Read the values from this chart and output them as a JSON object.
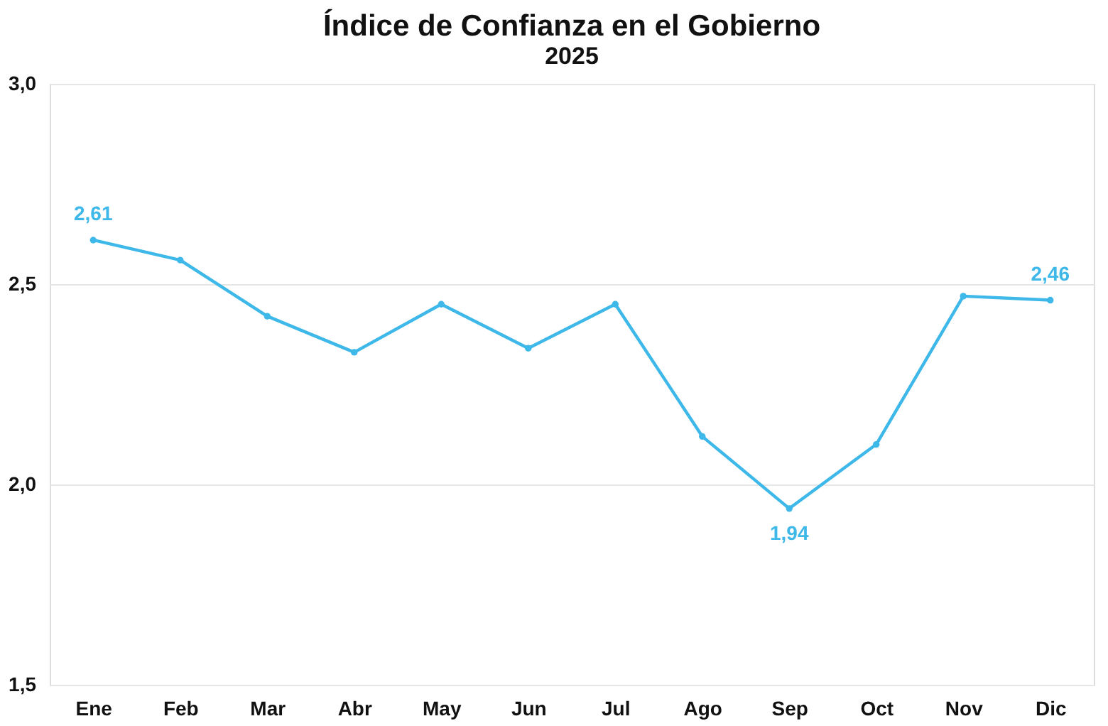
{
  "chart_data": {
    "type": "line",
    "title": "Índice de Confianza en el Gobierno",
    "subtitle": "2025",
    "categories": [
      "Ene",
      "Feb",
      "Mar",
      "Abr",
      "May",
      "Jun",
      "Jul",
      "Ago",
      "Sep",
      "Oct",
      "Nov",
      "Dic"
    ],
    "series": [
      {
        "color": "#3db8e8",
        "values": [
          2.61,
          2.56,
          2.42,
          2.33,
          2.45,
          2.34,
          2.45,
          2.12,
          1.94,
          2.1,
          2.47,
          2.46
        ],
        "value_labels": [
          "2,61",
          null,
          null,
          null,
          null,
          null,
          null,
          null,
          "1,94",
          null,
          null,
          "2,46"
        ]
      }
    ],
    "ylim": [
      1.5,
      3.0
    ],
    "yticks": [
      {
        "value": 1.5,
        "label": "1,5"
      },
      {
        "value": 2.0,
        "label": "2,0"
      },
      {
        "value": 2.5,
        "label": "2,5"
      },
      {
        "value": 3.0,
        "label": "3,0"
      }
    ],
    "grid": "y",
    "marker": "circle",
    "line_style": "solid",
    "legend": false
  }
}
